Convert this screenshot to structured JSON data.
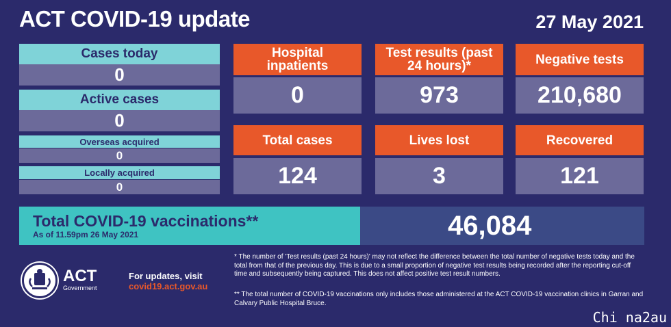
{
  "header": {
    "title": "ACT COVID-19 update",
    "date": "27 May 2021"
  },
  "left_panel": {
    "cases_today": {
      "label": "Cases today",
      "value": "0"
    },
    "active_cases": {
      "label": "Active cases",
      "value": "0"
    },
    "overseas_acquired": {
      "label": "Overseas acquired",
      "value": "0"
    },
    "locally_acquired": {
      "label": "Locally acquired",
      "value": "0"
    }
  },
  "grid": {
    "hospital_inpatients": {
      "label": "Hospital inpatients",
      "value": "0"
    },
    "test_results": {
      "label": "Test results (past 24 hours)*",
      "value": "973"
    },
    "negative_tests": {
      "label": "Negative tests",
      "value": "210,680"
    },
    "total_cases": {
      "label": "Total cases",
      "value": "124"
    },
    "lives_lost": {
      "label": "Lives lost",
      "value": "3"
    },
    "recovered": {
      "label": "Recovered",
      "value": "121"
    }
  },
  "vaccinations": {
    "title": "Total COVID-19 vaccinations**",
    "subtitle": "As of 11.59pm 26 May 2021",
    "value": "46,084"
  },
  "footer": {
    "logo_text": "ACT",
    "logo_sub": "Government",
    "updates_label": "For updates, visit",
    "updates_url": "covid19.act.gov.au",
    "note1": "* The number of 'Test results (past 24 hours)' may not reflect the difference between the total number of negative tests today and the total from that of the previous day. This is due to a small proportion of negative test results being recorded after the reporting cut-off time and subsequently being captured. This does not affect positive test result numbers.",
    "note2": "** The total number of COVID-19 vaccinations only includes those administered at the ACT COVID-19 vaccination clinics in Garran and Calvary Public Hospital Bruce."
  },
  "watermark": "Chi na2au",
  "colors": {
    "background": "#2b2a6b",
    "teal_label": "#7fd3d8",
    "value_box": "#6c6a9a",
    "orange": "#e8582a",
    "vaccination_teal": "#3fc3c2",
    "vaccination_value_bg": "#3b4a86"
  }
}
